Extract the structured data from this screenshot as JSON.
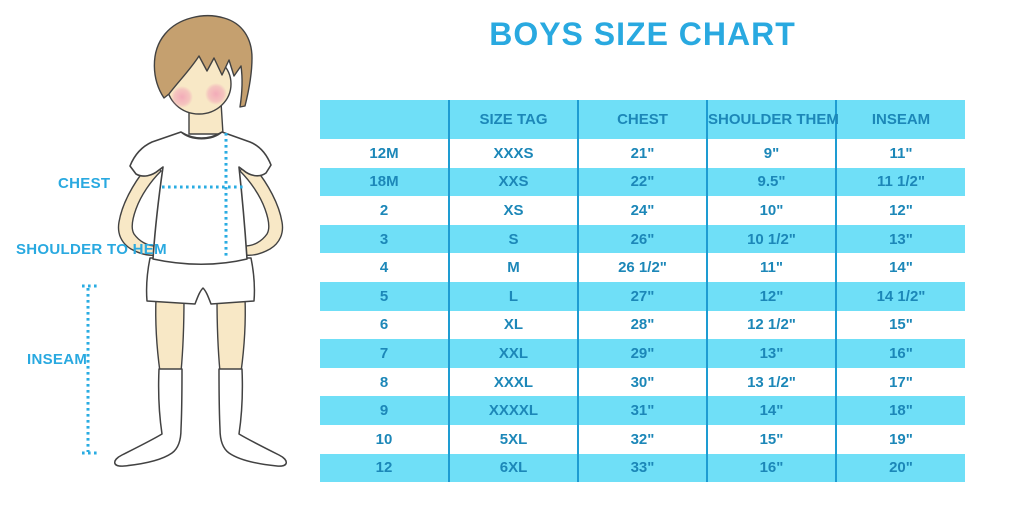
{
  "title": "BOYS SIZE CHART",
  "colors": {
    "accent_blue": "#29A9E0",
    "band_cyan": "#6FDFF7",
    "divider_blue": "#1E9CD2",
    "table_text": "#1C87B8",
    "dotted_line": "#2AACE2",
    "skin": "#F8E8C6",
    "hair": "#C5A06F",
    "blush": "#F2A8B8",
    "outline": "#424242"
  },
  "figure": {
    "labels": {
      "chest": "CHEST",
      "shoulder_to_hem": "SHOULDER TO HEM",
      "inseam": "INSEAM"
    }
  },
  "chart_data": {
    "type": "table",
    "title": "BOYS SIZE CHART",
    "units": "inches",
    "columns": [
      "",
      "SIZE TAG",
      "CHEST",
      "SHOULDER THEM",
      "INSEAM"
    ],
    "rows": [
      [
        "12M",
        "XXXS",
        "21\"",
        "9\"",
        "11\""
      ],
      [
        "18M",
        "XXS",
        "22\"",
        "9.5\"",
        "11 1/2\""
      ],
      [
        "2",
        "XS",
        "24\"",
        "10\"",
        "12\""
      ],
      [
        "3",
        "S",
        "26\"",
        "10 1/2\"",
        "13\""
      ],
      [
        "4",
        "M",
        "26 1/2\"",
        "11\"",
        "14\""
      ],
      [
        "5",
        "L",
        "27\"",
        "12\"",
        "14 1/2\""
      ],
      [
        "6",
        "XL",
        "28\"",
        "12 1/2\"",
        "15\""
      ],
      [
        "7",
        "XXL",
        "29\"",
        "13\"",
        "16\""
      ],
      [
        "8",
        "XXXL",
        "30\"",
        "13 1/2\"",
        "17\""
      ],
      [
        "9",
        "XXXXL",
        "31\"",
        "14\"",
        "18\""
      ],
      [
        "10",
        "5XL",
        "32\"",
        "15\"",
        "19\""
      ],
      [
        "12",
        "6XL",
        "33\"",
        "16\"",
        "20\""
      ]
    ],
    "layout": {
      "banding": "header cyan, data rows alternate white/cyan starting white",
      "column_dividers": "vertical blue lines between columns"
    }
  }
}
